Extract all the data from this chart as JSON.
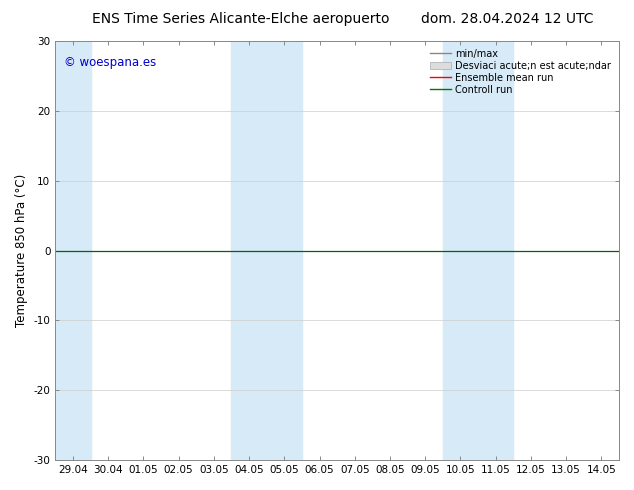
{
  "title_left": "ENS Time Series Alicante-Elche aeropuerto",
  "title_right": "dom. 28.04.2024 12 UTC",
  "ylabel": "Temperature 850 hPa (°C)",
  "ylim": [
    -30,
    30
  ],
  "yticks": [
    -30,
    -20,
    -10,
    0,
    10,
    20,
    30
  ],
  "x_labels": [
    "29.04",
    "30.04",
    "01.05",
    "02.05",
    "03.05",
    "04.05",
    "05.05",
    "06.05",
    "07.05",
    "08.05",
    "09.05",
    "10.05",
    "11.05",
    "12.05",
    "13.05",
    "14.05"
  ],
  "watermark": "© woespana.es",
  "watermark_color": "#0000cc",
  "bg_color": "#ffffff",
  "plot_bg_color": "#ffffff",
  "band_color": "#d6eaf8",
  "band_ranges": [
    [
      0,
      1
    ],
    [
      5,
      6
    ],
    [
      6,
      7
    ],
    [
      11,
      12
    ],
    [
      12,
      13
    ]
  ],
  "legend_labels": [
    "min/max",
    "Desviaci acute;n est acute;ndar",
    "Ensemble mean run",
    "Controll run"
  ],
  "legend_line_colors": [
    "#888888",
    "#cccccc",
    "#ff0000",
    "#007700"
  ],
  "grid_color": "#cccccc",
  "zero_line_color": "#006600",
  "title_fontsize": 10,
  "tick_fontsize": 7.5,
  "ylabel_fontsize": 8.5
}
